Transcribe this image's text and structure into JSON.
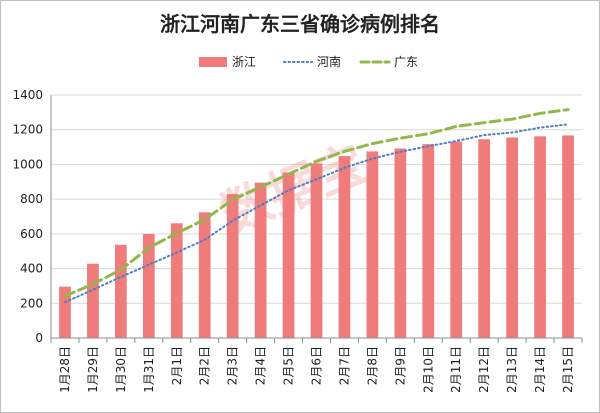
{
  "chart_data": {
    "type": "bar",
    "title": "浙江河南广东三省确诊病例排名",
    "xlabel": "",
    "ylabel": "",
    "ylim": [
      0,
      1400
    ],
    "y_ticks": [
      0,
      200,
      400,
      600,
      800,
      1000,
      1200,
      1400
    ],
    "grid": true,
    "legend_position": "top-center",
    "watermark": "数据宝",
    "categories": [
      "1月28日",
      "1月29日",
      "1月30日",
      "1月31日",
      "2月1日",
      "2月2日",
      "2月3日",
      "2月4日",
      "2月5日",
      "2月6日",
      "2月7日",
      "2月8日",
      "2月9日",
      "2月10日",
      "2月11日",
      "2月12日",
      "2月13日",
      "2月14日",
      "2月15日"
    ],
    "series": [
      {
        "name": "浙江",
        "kind": "bar",
        "color": "#f07b7b",
        "values": [
          296,
          428,
          537,
          599,
          661,
          724,
          829,
          895,
          954,
          1006,
          1048,
          1075,
          1092,
          1117,
          1131,
          1145,
          1155,
          1162,
          1167
        ]
      },
      {
        "name": "河南",
        "kind": "line",
        "style": "dotted",
        "color": "#4f7ec4",
        "values": [
          206,
          278,
          352,
          422,
          493,
          566,
          675,
          764,
          851,
          914,
          981,
          1033,
          1073,
          1105,
          1135,
          1169,
          1184,
          1212,
          1231
        ]
      },
      {
        "name": "广东",
        "kind": "line",
        "style": "dashed",
        "color": "#92b84a",
        "values": [
          241,
          311,
          393,
          520,
          604,
          683,
          797,
          870,
          944,
          1018,
          1075,
          1120,
          1151,
          1177,
          1219,
          1241,
          1261,
          1294,
          1316
        ]
      }
    ]
  }
}
